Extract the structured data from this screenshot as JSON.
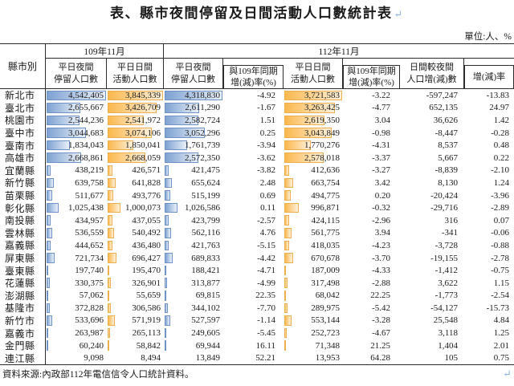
{
  "page": {
    "title": "表、縣市夜間停留及日間活動人口數統計表",
    "title_mark": "↵",
    "unit_note": "單位:人、%",
    "source_note": "資料來源:內政部112年電信信令人口統計資料。",
    "end_mark": "↵"
  },
  "table": {
    "corner_header": "縣市別",
    "groups": [
      {
        "label": "109年11月"
      },
      {
        "label": "112年11月"
      }
    ],
    "columns": [
      {
        "label_lines": [
          "平日夜間",
          "停留人口數"
        ],
        "type": "bar",
        "palette": "blue",
        "max": 4542405,
        "boxed": false
      },
      {
        "label_lines": [
          "平日日間",
          "活動人口數"
        ],
        "type": "bar",
        "palette": "orange",
        "max": 3845339,
        "boxed": false
      },
      {
        "label_lines": [
          "平日夜間",
          "停留人口數"
        ],
        "type": "bar",
        "palette": "blue",
        "max": 4318830,
        "boxed": false
      },
      {
        "label_lines": [
          "與109年同期",
          "增(減)率(%)"
        ],
        "type": "num",
        "boxed": true
      },
      {
        "label_lines": [
          "平日日間",
          "活動人口數"
        ],
        "type": "bar",
        "palette": "orange",
        "max": 3721583,
        "boxed": false
      },
      {
        "label_lines": [
          "與109年同期",
          "增(減)率(%)"
        ],
        "type": "num",
        "boxed": true
      },
      {
        "label_lines": [
          "日間較夜間",
          "人口增(減)數"
        ],
        "type": "num",
        "boxed": false
      },
      {
        "label_lines": [
          "增(減)率"
        ],
        "type": "num",
        "boxed": true
      }
    ],
    "rows": [
      {
        "name": "新北市",
        "values": [
          "4,542,405",
          "3,845,339",
          "4,318,830",
          "-4.92",
          "3,721,583",
          "-3.22",
          "-597,247",
          "-13.83"
        ]
      },
      {
        "name": "臺北市",
        "values": [
          "2,655,667",
          "3,426,709",
          "2,611,290",
          "-1.67",
          "3,263,425",
          "-4.77",
          "652,135",
          "24.97"
        ]
      },
      {
        "name": "桃園市",
        "values": [
          "2,544,236",
          "2,541,972",
          "2,582,724",
          "1.51",
          "2,619,350",
          "3.04",
          "36,626",
          "1.42"
        ]
      },
      {
        "name": "臺中市",
        "values": [
          "3,044,683",
          "3,074,106",
          "3,052,296",
          "0.25",
          "3,043,849",
          "-0.98",
          "-8,447",
          "-0.28"
        ]
      },
      {
        "name": "臺南市",
        "values": [
          "1,834,043",
          "1,850,041",
          "1,761,739",
          "-3.94",
          "1,770,276",
          "-4.31",
          "8,537",
          "0.48"
        ]
      },
      {
        "name": "高雄市",
        "values": [
          "2,668,861",
          "2,668,059",
          "2,572,350",
          "-3.62",
          "2,578,018",
          "-3.37",
          "5,667",
          "0.22"
        ]
      },
      {
        "name": "宜蘭縣",
        "values": [
          "438,219",
          "426,571",
          "421,475",
          "-3.82",
          "412,636",
          "-3.27",
          "-8,839",
          "-2.10"
        ]
      },
      {
        "name": "新竹縣",
        "values": [
          "639,758",
          "641,828",
          "655,624",
          "2.48",
          "663,754",
          "3.42",
          "8,130",
          "1.24"
        ]
      },
      {
        "name": "苗栗縣",
        "values": [
          "511,677",
          "493,776",
          "515,199",
          "0.69",
          "494,775",
          "0.20",
          "-20,424",
          "-3.96"
        ]
      },
      {
        "name": "彰化縣",
        "values": [
          "1,025,438",
          "1,000,073",
          "1,026,586",
          "0.11",
          "996,871",
          "-0.32",
          "-29,716",
          "-2.89"
        ]
      },
      {
        "name": "南投縣",
        "values": [
          "434,957",
          "437,055",
          "423,799",
          "-2.57",
          "424,115",
          "-2.96",
          "316",
          "0.07"
        ]
      },
      {
        "name": "雲林縣",
        "values": [
          "536,559",
          "540,492",
          "562,116",
          "4.76",
          "561,775",
          "3.94",
          "-341",
          "-0.06"
        ]
      },
      {
        "name": "嘉義縣",
        "values": [
          "444,652",
          "436,480",
          "421,763",
          "-5.15",
          "418,035",
          "-4.23",
          "-3,728",
          "-0.88"
        ]
      },
      {
        "name": "屏東縣",
        "values": [
          "721,734",
          "696,427",
          "689,833",
          "-4.42",
          "670,678",
          "-3.70",
          "-19,155",
          "-2.78"
        ]
      },
      {
        "name": "臺東縣",
        "values": [
          "197,740",
          "195,470",
          "188,421",
          "-4.71",
          "187,009",
          "-4.33",
          "-1,412",
          "-0.75"
        ]
      },
      {
        "name": "花蓮縣",
        "values": [
          "330,375",
          "326,901",
          "313,877",
          "-4.99",
          "317,498",
          "-2.88",
          "3,622",
          "1.15"
        ]
      },
      {
        "name": "澎湖縣",
        "values": [
          "57,062",
          "55,659",
          "69,815",
          "22.35",
          "68,042",
          "22.25",
          "-1,773",
          "-2.54"
        ]
      },
      {
        "name": "基隆市",
        "values": [
          "372,828",
          "306,586",
          "344,102",
          "-7.70",
          "289,975",
          "-5.42",
          "-54,127",
          "-15.73"
        ]
      },
      {
        "name": "新竹市",
        "values": [
          "533,696",
          "571,919",
          "527,597",
          "-1.14",
          "553,144",
          "-3.28",
          "25,548",
          "4.84"
        ]
      },
      {
        "name": "嘉義市",
        "values": [
          "263,987",
          "265,113",
          "249,605",
          "-5.45",
          "252,723",
          "-4.67",
          "3,118",
          "1.25"
        ]
      },
      {
        "name": "金門縣",
        "values": [
          "60,240",
          "58,842",
          "69,944",
          "16.11",
          "71,348",
          "21.25",
          "1,404",
          "2.01"
        ]
      },
      {
        "name": "連江縣",
        "values": [
          "9,098",
          "8,494",
          "13,849",
          "52.21",
          "13,953",
          "64.28",
          "105",
          "0.75"
        ]
      }
    ]
  },
  "colors": {
    "bar_blue": "#7EA2D2",
    "bar_blue_light": "#E9F0F8",
    "bar_blue_border": "#6F93C6",
    "bar_orange": "#FBB84E",
    "bar_orange_light": "#FDF1DC",
    "bar_orange_border": "#EDAE4D",
    "return_mark": "#8EB4E3"
  }
}
